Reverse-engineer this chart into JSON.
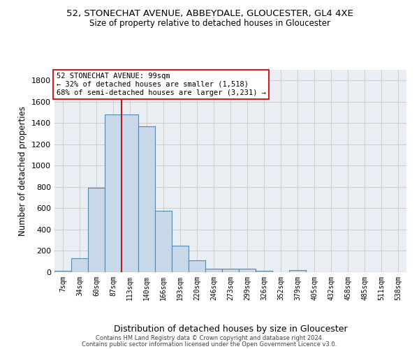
{
  "title1": "52, STONECHAT AVENUE, ABBEYDALE, GLOUCESTER, GL4 4XE",
  "title2": "Size of property relative to detached houses in Gloucester",
  "xlabel": "Distribution of detached houses by size in Gloucester",
  "ylabel": "Number of detached properties",
  "bin_labels": [
    "7sqm",
    "34sqm",
    "60sqm",
    "87sqm",
    "113sqm",
    "140sqm",
    "166sqm",
    "193sqm",
    "220sqm",
    "246sqm",
    "273sqm",
    "299sqm",
    "326sqm",
    "352sqm",
    "379sqm",
    "405sqm",
    "432sqm",
    "458sqm",
    "485sqm",
    "511sqm",
    "538sqm"
  ],
  "bar_heights": [
    10,
    130,
    795,
    1480,
    1480,
    1370,
    575,
    250,
    110,
    35,
    30,
    30,
    15,
    0,
    20,
    0,
    0,
    0,
    0,
    0,
    0
  ],
  "bar_color": "#c8d8e8",
  "bar_edge_color": "#5588aa",
  "vline_color": "#aa2222",
  "annotation_text": "52 STONECHAT AVENUE: 99sqm\n← 32% of detached houses are smaller (1,518)\n68% of semi-detached houses are larger (3,231) →",
  "annotation_box_color": "#ffffff",
  "annotation_box_edge": "#cc2222",
  "ylim": [
    0,
    1900
  ],
  "yticks": [
    0,
    200,
    400,
    600,
    800,
    1000,
    1200,
    1400,
    1600,
    1800
  ],
  "grid_color": "#cccccc",
  "bg_color": "#e8eef4",
  "footer1": "Contains HM Land Registry data © Crown copyright and database right 2024.",
  "footer2": "Contains public sector information licensed under the Open Government Licence v3.0."
}
